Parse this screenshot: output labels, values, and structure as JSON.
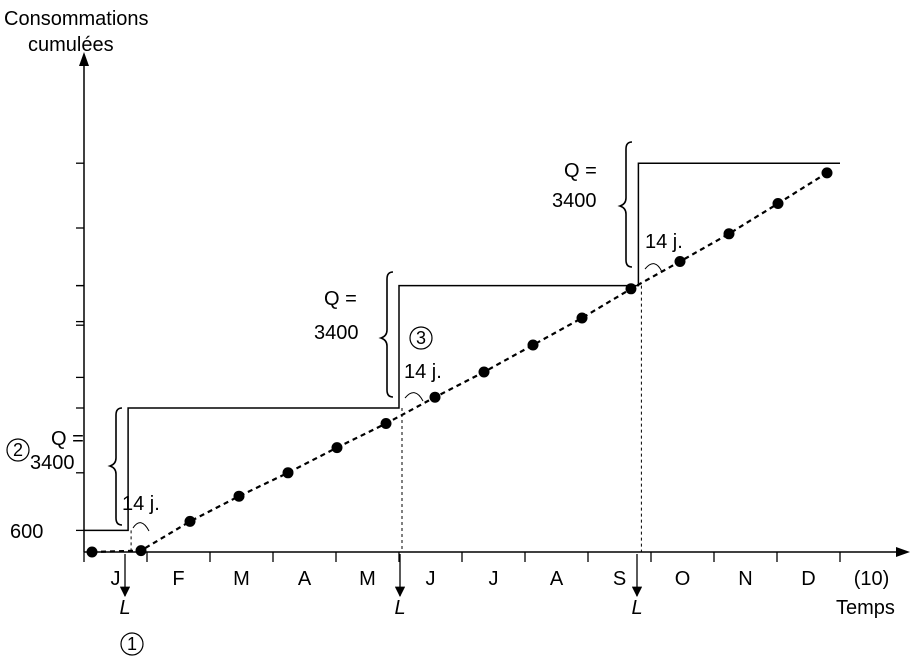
{
  "chart_data": {
    "type": "line",
    "ylabel_line1": "Consommations",
    "ylabel_line2": "cumulées",
    "xlabel": "Temps",
    "categories": [
      "J",
      "F",
      "M",
      "A",
      "M",
      "J",
      "J",
      "A",
      "S",
      "O",
      "N",
      "D",
      "(10)"
    ],
    "y_tick_label": "600",
    "consumption_points": {
      "x": [
        0,
        1,
        2,
        3,
        4,
        5,
        6,
        7,
        8,
        9,
        10,
        11,
        12,
        13,
        14,
        15
      ],
      "y": [
        0,
        40,
        850,
        1550,
        2200,
        2900,
        3570,
        4300,
        5000,
        5750,
        6500,
        7310,
        8070,
        8840,
        9680,
        10530
      ]
    },
    "stock_line": {
      "x": [
        0,
        0.7,
        0.7,
        5.0,
        5.0,
        8.8,
        8.8,
        12.0
      ],
      "y": [
        600,
        600,
        4000,
        4000,
        7400,
        7400,
        10800,
        10800
      ]
    },
    "orders": [
      {
        "label": "L",
        "marker": "1",
        "lead_time": "14 j.",
        "q_line1": "Q =",
        "q_line2": "3400",
        "q_marker": "2"
      },
      {
        "label": "L",
        "marker": "",
        "lead_time": "14 j.",
        "q_line1": "Q =",
        "q_line2": "3400",
        "q_marker": "3"
      },
      {
        "label": "L",
        "marker": "",
        "lead_time": "14 j.",
        "q_line1": "Q =",
        "q_line2": "3400",
        "q_marker": ""
      }
    ],
    "grid": false
  }
}
